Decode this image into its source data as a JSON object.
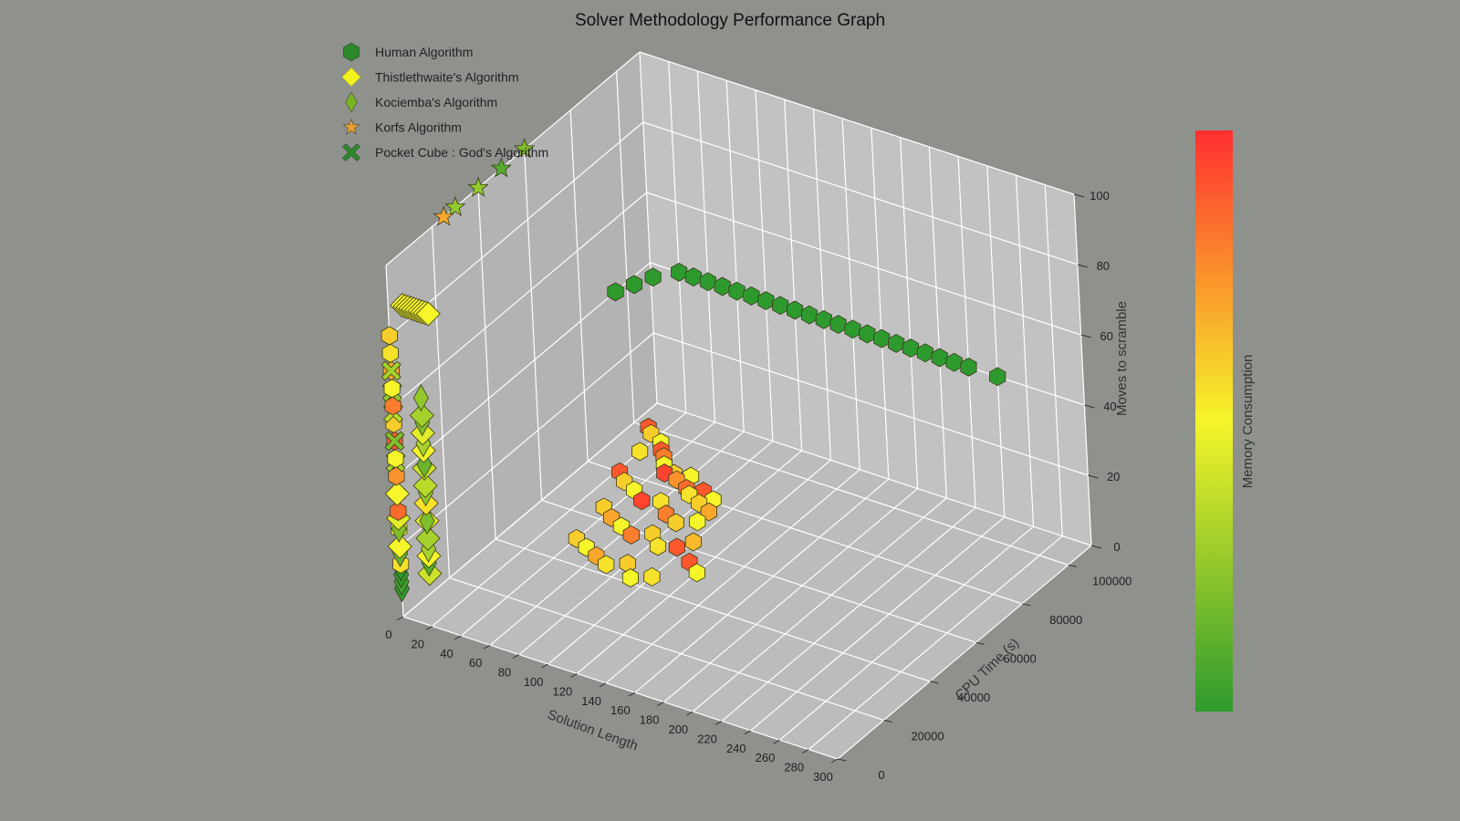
{
  "chart_data": {
    "type": "scatter",
    "projection": "3d",
    "title": "Solver Methodology Performance Graph",
    "xlabel": "Solution Length",
    "ylabel": "CPU Time (s)",
    "zlabel": "Moves to scramble",
    "colorbar_label": "Memory Consumption",
    "xlim": [
      0,
      300
    ],
    "ylim": [
      0,
      110000
    ],
    "zlim": [
      0,
      100
    ],
    "x_ticks": [
      0,
      20,
      40,
      60,
      80,
      100,
      120,
      140,
      160,
      180,
      200,
      220,
      240,
      260,
      280,
      300
    ],
    "y_ticks": [
      0,
      20000,
      40000,
      60000,
      80000,
      100000
    ],
    "z_ticks": [
      0,
      20,
      40,
      60,
      80,
      100
    ],
    "grid": true,
    "legend_position": "upper-left",
    "colormap": [
      "#2e9a2e",
      "#f5f52a",
      "#ff2f2f"
    ],
    "series": [
      {
        "name": "Human Algorithm",
        "marker": "hexagon",
        "legend_color": "#2a8a2a",
        "points": [
          [
            10,
            100000,
            0,
            0.9
          ],
          [
            15,
            98000,
            0,
            0.6
          ],
          [
            25,
            96000,
            0,
            0.5
          ],
          [
            30,
            93000,
            0,
            0.9
          ],
          [
            20,
            90000,
            0,
            0.55
          ],
          [
            35,
            91000,
            0,
            0.8
          ],
          [
            40,
            88000,
            0,
            0.5
          ],
          [
            45,
            85000,
            0,
            0.95
          ],
          [
            50,
            86000,
            0,
            0.6
          ],
          [
            55,
            84000,
            0,
            0.75
          ],
          [
            60,
            87000,
            0,
            0.5
          ],
          [
            65,
            82000,
            0,
            0.85
          ],
          [
            70,
            80000,
            0,
            0.55
          ],
          [
            75,
            83000,
            0,
            0.9
          ],
          [
            80,
            78000,
            0,
            0.6
          ],
          [
            85,
            81000,
            0,
            0.5
          ],
          [
            90,
            76000,
            0,
            0.7
          ],
          [
            22,
            80000,
            0,
            0.9
          ],
          [
            30,
            77000,
            0,
            0.6
          ],
          [
            40,
            75000,
            0,
            0.5
          ],
          [
            50,
            72000,
            0,
            0.95
          ],
          [
            60,
            74000,
            0,
            0.55
          ],
          [
            70,
            70000,
            0,
            0.8
          ],
          [
            80,
            68000,
            0,
            0.6
          ],
          [
            90,
            71000,
            0,
            0.5
          ],
          [
            35,
            65000,
            0,
            0.6
          ],
          [
            45,
            62000,
            0,
            0.7
          ],
          [
            55,
            60000,
            0,
            0.5
          ],
          [
            65,
            58000,
            0,
            0.8
          ],
          [
            75,
            61000,
            0,
            0.6
          ],
          [
            85,
            57000,
            0,
            0.55
          ],
          [
            95,
            59000,
            0,
            0.9
          ],
          [
            100,
            63000,
            0,
            0.65
          ],
          [
            40,
            50000,
            0,
            0.6
          ],
          [
            50,
            48000,
            0,
            0.5
          ],
          [
            60,
            46000,
            0,
            0.7
          ],
          [
            70,
            44000,
            0,
            0.55
          ],
          [
            80,
            47000,
            0,
            0.6
          ],
          [
            90,
            42000,
            0,
            0.5
          ],
          [
            100,
            45000,
            0,
            0.55
          ],
          [
            110,
            55000,
            0,
            0.9
          ],
          [
            120,
            52000,
            0,
            0.5
          ],
          [
            0,
            95000,
            40,
            0.0
          ],
          [
            5,
            100000,
            40,
            0.0
          ],
          [
            10,
            105000,
            40,
            0.0
          ],
          [
            20,
            110000,
            40,
            0.0
          ],
          [
            30,
            110000,
            40,
            0.0
          ],
          [
            40,
            110000,
            40,
            0.0
          ],
          [
            50,
            110000,
            40,
            0.0
          ],
          [
            60,
            110000,
            40,
            0.0
          ],
          [
            70,
            110000,
            40,
            0.0
          ],
          [
            80,
            110000,
            40,
            0.0
          ],
          [
            90,
            110000,
            40,
            0.0
          ],
          [
            100,
            110000,
            40,
            0.0
          ],
          [
            110,
            110000,
            40,
            0.0
          ],
          [
            120,
            110000,
            40,
            0.0
          ],
          [
            130,
            110000,
            40,
            0.0
          ],
          [
            140,
            110000,
            40,
            0.0
          ],
          [
            150,
            110000,
            40,
            0.0
          ],
          [
            160,
            110000,
            40,
            0.0
          ],
          [
            170,
            110000,
            40,
            0.0
          ],
          [
            180,
            110000,
            40,
            0.0
          ],
          [
            190,
            110000,
            40,
            0.0
          ],
          [
            200,
            110000,
            40,
            0.0
          ],
          [
            210,
            110000,
            40,
            0.0
          ],
          [
            220,
            110000,
            40,
            0.0
          ],
          [
            240,
            110000,
            40,
            0.0
          ],
          [
            0,
            0,
            80,
            0.6
          ],
          [
            0,
            0,
            75,
            0.55
          ],
          [
            0,
            0,
            70,
            0.7
          ],
          [
            0,
            0,
            65,
            0.5
          ],
          [
            0,
            0,
            60,
            0.8
          ],
          [
            0,
            0,
            55,
            0.6
          ],
          [
            0,
            0,
            50,
            0.9
          ],
          [
            0,
            0,
            45,
            0.5
          ],
          [
            0,
            0,
            40,
            0.75
          ],
          [
            0,
            0,
            35,
            0.6
          ],
          [
            0,
            0,
            30,
            0.85
          ],
          [
            0,
            0,
            25,
            0.5
          ],
          [
            0,
            0,
            20,
            0.65
          ],
          [
            0,
            0,
            15,
            0.55
          ]
        ]
      },
      {
        "name": "Thistlethwaite's Algorithm",
        "marker": "diamond",
        "legend_color": "#f2f21e",
        "points": [
          [
            10,
            0,
            90,
            0.5
          ],
          [
            12,
            0,
            90,
            0.5
          ],
          [
            14,
            0,
            90,
            0.5
          ],
          [
            16,
            0,
            90,
            0.5
          ],
          [
            18,
            0,
            90,
            0.5
          ],
          [
            20,
            0,
            90,
            0.5
          ],
          [
            22,
            0,
            90,
            0.5
          ],
          [
            24,
            0,
            90,
            0.5
          ],
          [
            26,
            0,
            90,
            0.5
          ],
          [
            28,
            0,
            90,
            0.5
          ],
          [
            20,
            0,
            60,
            0.3
          ],
          [
            20,
            0,
            55,
            0.45
          ],
          [
            20,
            0,
            50,
            0.5
          ],
          [
            20,
            0,
            45,
            0.4
          ],
          [
            20,
            0,
            40,
            0.35
          ],
          [
            20,
            0,
            35,
            0.55
          ],
          [
            20,
            0,
            30,
            0.45
          ],
          [
            20,
            0,
            25,
            0.3
          ],
          [
            20,
            0,
            20,
            0.5
          ],
          [
            20,
            0,
            15,
            0.4
          ],
          [
            0,
            0,
            35,
            0.5
          ],
          [
            0,
            0,
            28,
            0.45
          ],
          [
            0,
            0,
            20,
            0.5
          ]
        ]
      },
      {
        "name": "Kociemba's Algorithm",
        "marker": "thin_diamond",
        "legend_color": "#7ab51f",
        "points": [
          [
            20,
            0,
            65,
            0.25
          ],
          [
            20,
            0,
            58,
            0.2
          ],
          [
            20,
            0,
            52,
            0.3
          ],
          [
            20,
            0,
            46,
            0.15
          ],
          [
            20,
            0,
            38,
            0.25
          ],
          [
            20,
            0,
            30,
            0.2
          ],
          [
            20,
            0,
            22,
            0.3
          ],
          [
            20,
            0,
            18,
            0.1
          ],
          [
            0,
            0,
            25,
            0.2
          ],
          [
            0,
            0,
            18,
            0.15
          ],
          [
            0,
            0,
            14,
            0.0
          ],
          [
            0,
            0,
            12,
            0.0
          ],
          [
            0,
            0,
            10,
            0.05
          ],
          [
            0,
            0,
            8,
            0.0
          ]
        ]
      },
      {
        "name": "Korfs Algorithm",
        "marker": "star",
        "legend_color": "#e6a02e",
        "points": [
          [
            0,
            40000,
            100,
            0.25
          ],
          [
            0,
            50000,
            100,
            0.1
          ],
          [
            0,
            25000,
            100,
            0.7
          ],
          [
            0,
            30000,
            100,
            0.25
          ],
          [
            0,
            60000,
            100,
            0.2
          ]
        ]
      },
      {
        "name": "Pocket Cube : God's Algorithm",
        "marker": "x",
        "legend_color": "#2a8a2a",
        "points": [
          [
            0,
            0,
            70,
            0.3
          ],
          [
            0,
            0,
            64,
            0.25
          ],
          [
            0,
            0,
            58,
            0.35
          ],
          [
            0,
            0,
            50,
            0.2
          ],
          [
            0,
            0,
            44,
            0.3
          ]
        ]
      }
    ]
  }
}
